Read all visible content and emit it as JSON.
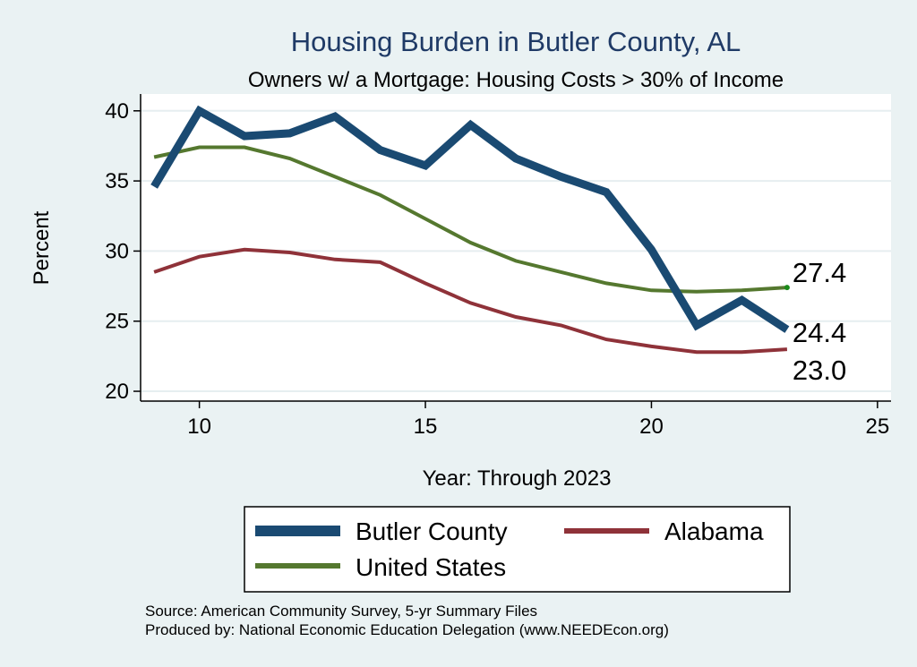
{
  "colors": {
    "background": "#eaf2f3",
    "plot_background": "#ffffff",
    "grid": "#e6eef0",
    "title": "#1f3a66",
    "butler": "#1a4a72",
    "alabama": "#8f3239",
    "us": "#55782f",
    "us_end_marker": "#1a8a1a"
  },
  "chart_data": {
    "type": "line",
    "title": "Housing Burden in Butler County, AL",
    "subtitle": "Owners w/ a Mortgage: Housing Costs > 30% of Income",
    "xlabel": "Year: Through 2023",
    "ylabel": "Percent",
    "xlim": [
      8.7,
      25.3
    ],
    "ylim": [
      19.3,
      41.2
    ],
    "x_ticks": [
      10,
      15,
      20,
      25
    ],
    "y_ticks": [
      20,
      25,
      30,
      35,
      40
    ],
    "grid": true,
    "x": [
      9,
      10,
      11,
      12,
      13,
      14,
      15,
      16,
      17,
      18,
      19,
      20,
      21,
      22,
      23
    ],
    "series": [
      {
        "key": "butler",
        "name": "Butler County",
        "width": "thick",
        "values": [
          34.6,
          40.0,
          38.2,
          38.4,
          39.6,
          37.2,
          36.1,
          39.0,
          36.6,
          35.3,
          34.2,
          30.1,
          24.7,
          26.5,
          24.4
        ],
        "end_label": "24.4"
      },
      {
        "key": "alabama",
        "name": "Alabama",
        "width": "medium",
        "values": [
          28.5,
          29.6,
          30.1,
          29.9,
          29.4,
          29.2,
          27.7,
          26.3,
          25.3,
          24.7,
          23.7,
          23.2,
          22.8,
          22.8,
          23.0
        ],
        "end_label": "23.0"
      },
      {
        "key": "us",
        "name": "United States",
        "width": "medium",
        "values": [
          36.7,
          37.4,
          37.4,
          36.6,
          35.3,
          34.0,
          32.3,
          30.6,
          29.3,
          28.5,
          27.7,
          27.2,
          27.1,
          27.2,
          27.4
        ],
        "end_label": "27.4"
      }
    ],
    "legend_position": "bottom"
  },
  "legend": {
    "items": [
      {
        "key": "butler",
        "label": "Butler County"
      },
      {
        "key": "alabama",
        "label": "Alabama"
      },
      {
        "key": "us",
        "label": "United States"
      }
    ]
  },
  "source": {
    "line1": "Source: American Community Survey, 5-yr Summary Files",
    "line2": "Produced by: National Economic Education Delegation (www.NEEDEcon.org)"
  }
}
